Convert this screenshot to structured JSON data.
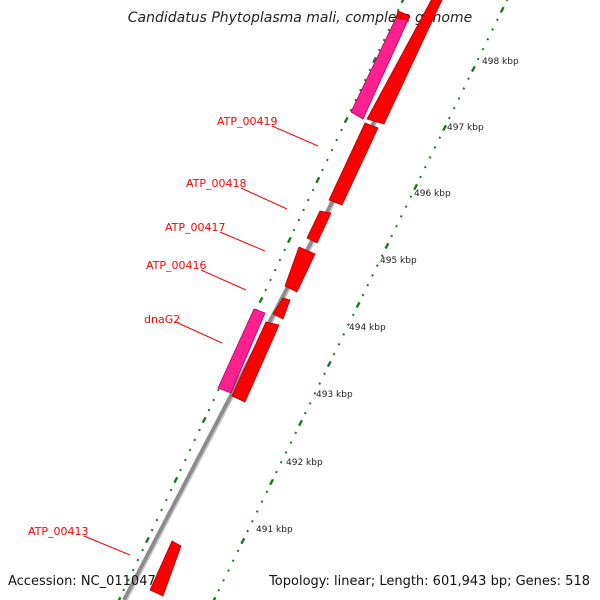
{
  "title": "Candidatus Phytoplasma mali, complete genome",
  "footer": {
    "accession": "Accession: NC_011047",
    "summary": "Topology: linear; Length: 601,943 bp; Genes: 518"
  },
  "colors": {
    "gene": "#ff0000",
    "gene_highlight": "#ff2090",
    "label": "#ff0000",
    "backbone": "#8c8c8c",
    "dots": "#1a7a1a"
  },
  "kbp_labels": [
    "498 kbp",
    "497 kbp",
    "496 kbp",
    "495 kbp",
    "494 kbp",
    "493 kbp",
    "492 kbp",
    "491 kbp"
  ],
  "gene_labels": [
    "ATP_00419",
    "ATP_00418",
    "ATP_00417",
    "ATP_00416",
    "dnaG2",
    "ATP_00413"
  ]
}
